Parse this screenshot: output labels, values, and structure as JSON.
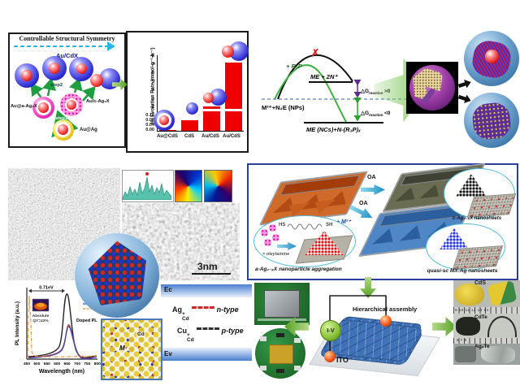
{
  "sym": {
    "title": "Controllable Structural Symmetry",
    "aucdx": "Au/CdX",
    "step1": "step1",
    "step2": "step2",
    "au_a": "Au@a-Ag₂X",
    "au_c": "Au/c-Ag₂X",
    "auag": "Au@Ag"
  },
  "chart_data": [
    {
      "type": "bar",
      "categories": [
        "Au@CdS",
        "CdS",
        "Au/CdS",
        "Au/CdS"
      ],
      "values": [
        0.01,
        0.09,
        2.2,
        7.3
      ],
      "ylabel": "H₂ Evolution Rate (mmol·g⁻¹·h⁻¹)",
      "broken_axis": true,
      "yticks_upper": [
        "8",
        "7",
        "6",
        "5",
        "4",
        "3",
        "2"
      ],
      "yticks_lower": [
        "0.12",
        "0.08",
        "0.04",
        "0.00"
      ],
      "ylim_upper": [
        2,
        8
      ],
      "ylim_lower": [
        0,
        0.12
      ],
      "bar_color": "#ee0000"
    },
    {
      "type": "line",
      "xlabel": "Wavelength (nm)",
      "ylabel": "PL Intensity (a.u.)",
      "xticks": [
        "450",
        "500",
        "550",
        "600",
        "650",
        "700",
        "750",
        "800"
      ],
      "xlim": [
        450,
        800
      ],
      "annotations": {
        "shift": "0.71eV",
        "qy1": "Absolute",
        "qy2": "QY=42%",
        "doped": "Doped PL"
      },
      "series": [
        {
          "name": "doped-PL-black",
          "color": "#222222",
          "style": "solid",
          "points": [
            [
              450,
              0.02
            ],
            [
              550,
              0.05
            ],
            [
              600,
              0.25
            ],
            [
              625,
              0.6
            ],
            [
              650,
              1.0
            ],
            [
              675,
              0.55
            ],
            [
              700,
              0.2
            ],
            [
              750,
              0.05
            ],
            [
              800,
              0.03
            ]
          ]
        },
        {
          "name": "doped-PL-red",
          "color": "#cc3333",
          "style": "solid",
          "points": [
            [
              450,
              0.02
            ],
            [
              600,
              0.18
            ],
            [
              650,
              0.55
            ],
            [
              700,
              0.15
            ],
            [
              800,
              0.02
            ]
          ]
        },
        {
          "name": "doped-PL-blue",
          "color": "#3344bb",
          "style": "solid",
          "points": [
            [
              450,
              0.02
            ],
            [
              600,
              0.17
            ],
            [
              650,
              0.52
            ],
            [
              700,
              0.14
            ],
            [
              800,
              0.02
            ]
          ]
        },
        {
          "name": "undoped-PL-orange",
          "color": "#e8912d",
          "style": "dash-dot",
          "points": [
            [
              452,
              0.1
            ],
            [
              462,
              0.95
            ],
            [
              468,
              0.35
            ],
            [
              480,
              0.1
            ],
            [
              520,
              0.04
            ],
            [
              800,
              0.03
            ]
          ]
        }
      ]
    }
  ],
  "scheme": {
    "reactant": "M²⁺+N₂E (NPs)",
    "rp": "+ R₃P",
    "up": "ME + 2N⁺",
    "down": "ME (NCs)+N-(R₃P)ₓ",
    "dg": "△G",
    "dgsub": "reaction",
    "gt": ">0",
    "lt": "<0",
    "cross": "✗"
  },
  "tem": {
    "scale": "3nm"
  },
  "ns": {
    "oa1": "OA",
    "oa2": "OA",
    "m2": "+ M²⁺",
    "hs": "HS",
    "sh": "SH",
    "oley": "= oleylamine",
    "agg": "a-Ag₂₋ₓX nanoparticle aggregation",
    "c": "c-Ag₂₋ₓX nanosheets",
    "quasi": "quasi-sc MX:Ag nanosheets"
  },
  "band": {
    "ec": "Ec",
    "ev": "Ev",
    "ag": "Ag",
    "cu": "Cu",
    "plus": "+",
    "cd": "Cd",
    "n": "n-type",
    "p": "p-type"
  },
  "dev": {
    "iv": "I-V",
    "ito": "ITO",
    "assembly": "Hierarchical assembly"
  },
  "ph": {
    "cds": "CdS",
    "cdte": "CdTe",
    "agte": "Ag₂Te",
    "ruler1": "9    10    11    12    13    14",
    "ruler2": "6   7   8"
  },
  "am": {
    "cd": "Cd",
    "m": "M"
  }
}
